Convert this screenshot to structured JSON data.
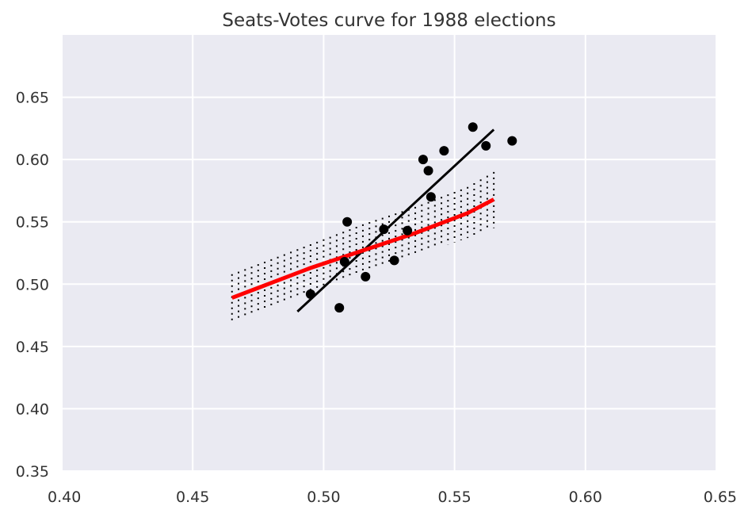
{
  "chart_data": {
    "type": "scatter",
    "title": "Seats-Votes curve for 1988 elections",
    "xlabel": "",
    "ylabel": "",
    "xlim": [
      0.4,
      0.65
    ],
    "ylim": [
      0.35,
      0.7
    ],
    "x_ticks": [
      "0.40",
      "0.45",
      "0.50",
      "0.55",
      "0.60",
      "0.65"
    ],
    "y_ticks": [
      "0.35",
      "0.40",
      "0.45",
      "0.50",
      "0.55",
      "0.60",
      "0.65"
    ],
    "grid": true,
    "style": {
      "background": "#eaeaf2",
      "grid_color": "#ffffff",
      "point_color": "#000000",
      "fit_line_color": "#000000",
      "simulated_line_color": "#ff0000",
      "band_color": "#000000"
    },
    "series": [
      {
        "type": "scatter",
        "points": [
          [
            0.495,
            0.492
          ],
          [
            0.506,
            0.481
          ],
          [
            0.508,
            0.518
          ],
          [
            0.509,
            0.55
          ],
          [
            0.516,
            0.506
          ],
          [
            0.523,
            0.544
          ],
          [
            0.527,
            0.519
          ],
          [
            0.532,
            0.543
          ],
          [
            0.538,
            0.6
          ],
          [
            0.54,
            0.591
          ],
          [
            0.541,
            0.57
          ],
          [
            0.546,
            0.607
          ],
          [
            0.557,
            0.626
          ],
          [
            0.562,
            0.611
          ],
          [
            0.572,
            0.615
          ]
        ]
      },
      {
        "type": "line",
        "x": [
          0.49,
          0.565
        ],
        "y": [
          0.478,
          0.624
        ]
      },
      {
        "type": "line",
        "x": [
          0.465,
          0.475,
          0.485,
          0.495,
          0.505,
          0.515,
          0.525,
          0.535,
          0.545,
          0.555,
          0.565
        ],
        "y": [
          0.489,
          0.497,
          0.505,
          0.513,
          0.52,
          0.527,
          0.534,
          0.541,
          0.549,
          0.557,
          0.568
        ],
        "band_lower": [
          0.47,
          0.478,
          0.486,
          0.493,
          0.5,
          0.508,
          0.515,
          0.522,
          0.53,
          0.537,
          0.545
        ],
        "band_upper": [
          0.508,
          0.516,
          0.524,
          0.532,
          0.54,
          0.548,
          0.555,
          0.562,
          0.57,
          0.578,
          0.59
        ]
      }
    ]
  }
}
